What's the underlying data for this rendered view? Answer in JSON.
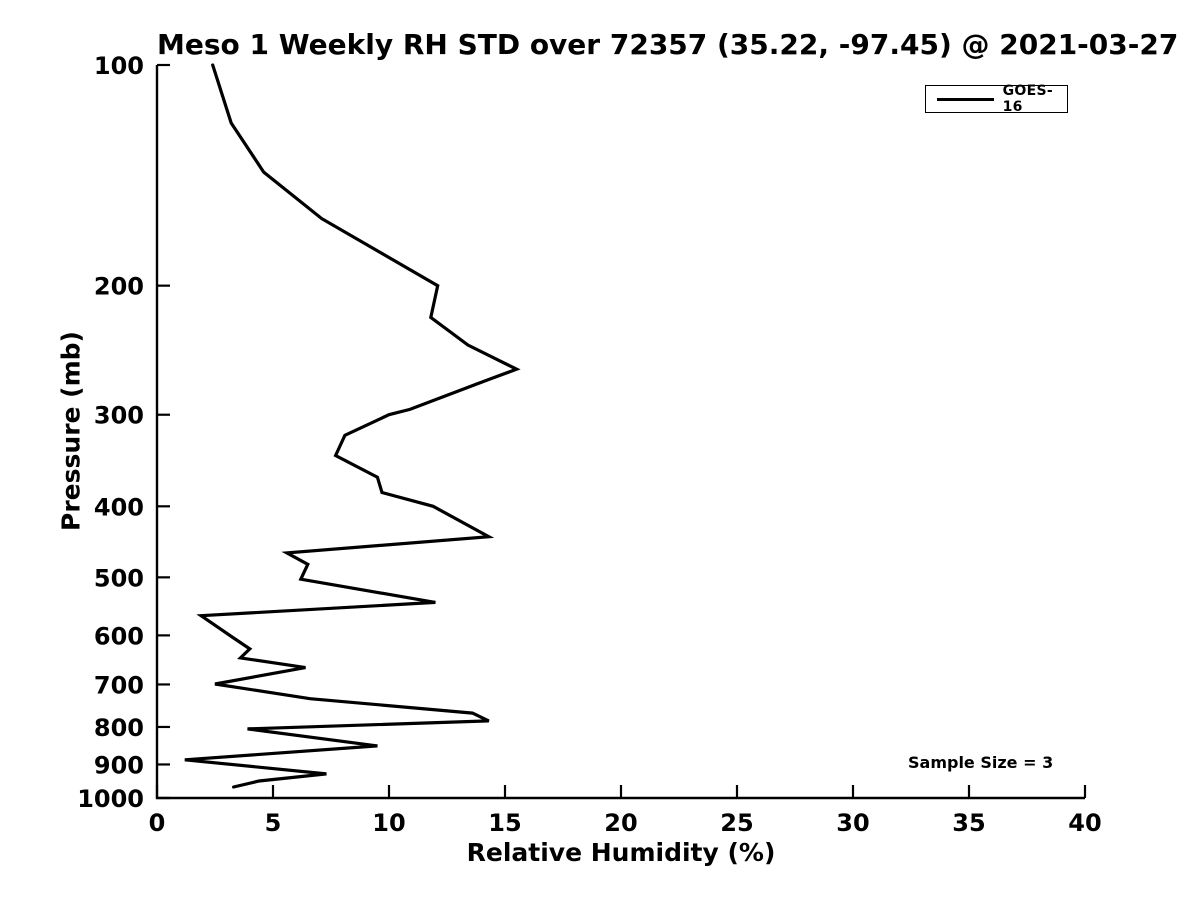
{
  "chart_data": {
    "type": "line",
    "title": "Meso 1 Weekly RH STD over 72357 (35.22, -97.45) @ 2021-03-27",
    "xlabel": "Relative Humidity (%)",
    "ylabel": "Pressure (mb)",
    "xlim": [
      0,
      40
    ],
    "ylim": [
      100,
      1000
    ],
    "y_scale": "log",
    "y_direction": "inverted (100 mb at top, 1000 mb at bottom)",
    "x_ticks": [
      0,
      5,
      10,
      15,
      20,
      25,
      30,
      35,
      40
    ],
    "y_ticks": [
      100,
      200,
      300,
      400,
      500,
      600,
      700,
      800,
      900,
      1000
    ],
    "grid": false,
    "box": "left and bottom spines only, ticks pointing inward",
    "legend": {
      "position": "upper right",
      "entries": [
        {
          "label": "GOES-16",
          "color": "#000000",
          "line_width": 2
        }
      ]
    },
    "annotation": "Sample Size = 3",
    "series": [
      {
        "name": "GOES-16",
        "color": "#000000",
        "points_rh_percent_vs_pressure_mb": [
          [
            2.4,
            100
          ],
          [
            3.2,
            120
          ],
          [
            4.6,
            140
          ],
          [
            7.1,
            162
          ],
          [
            12.1,
            200
          ],
          [
            11.8,
            221
          ],
          [
            12.7,
            232
          ],
          [
            13.4,
            241
          ],
          [
            15.5,
            260
          ],
          [
            14.1,
            270
          ],
          [
            10.9,
            295
          ],
          [
            10.0,
            300
          ],
          [
            8.1,
            320
          ],
          [
            7.7,
            341
          ],
          [
            9.5,
            365
          ],
          [
            9.7,
            383
          ],
          [
            11.9,
            400
          ],
          [
            14.3,
            440
          ],
          [
            5.6,
            463
          ],
          [
            6.5,
            480
          ],
          [
            6.2,
            503
          ],
          [
            12.0,
            541
          ],
          [
            1.9,
            564
          ],
          [
            3.3,
            605
          ],
          [
            4.0,
            626
          ],
          [
            3.6,
            644
          ],
          [
            6.4,
            664
          ],
          [
            2.5,
            699
          ],
          [
            6.6,
            732
          ],
          [
            13.6,
            766
          ],
          [
            14.3,
            785
          ],
          [
            3.9,
            805
          ],
          [
            9.5,
            849
          ],
          [
            1.2,
            887
          ],
          [
            7.3,
            927
          ],
          [
            4.4,
            948
          ],
          [
            3.3,
            966
          ]
        ]
      }
    ]
  },
  "colors": {
    "line": "#000000",
    "text": "#000000",
    "background": "#ffffff"
  }
}
